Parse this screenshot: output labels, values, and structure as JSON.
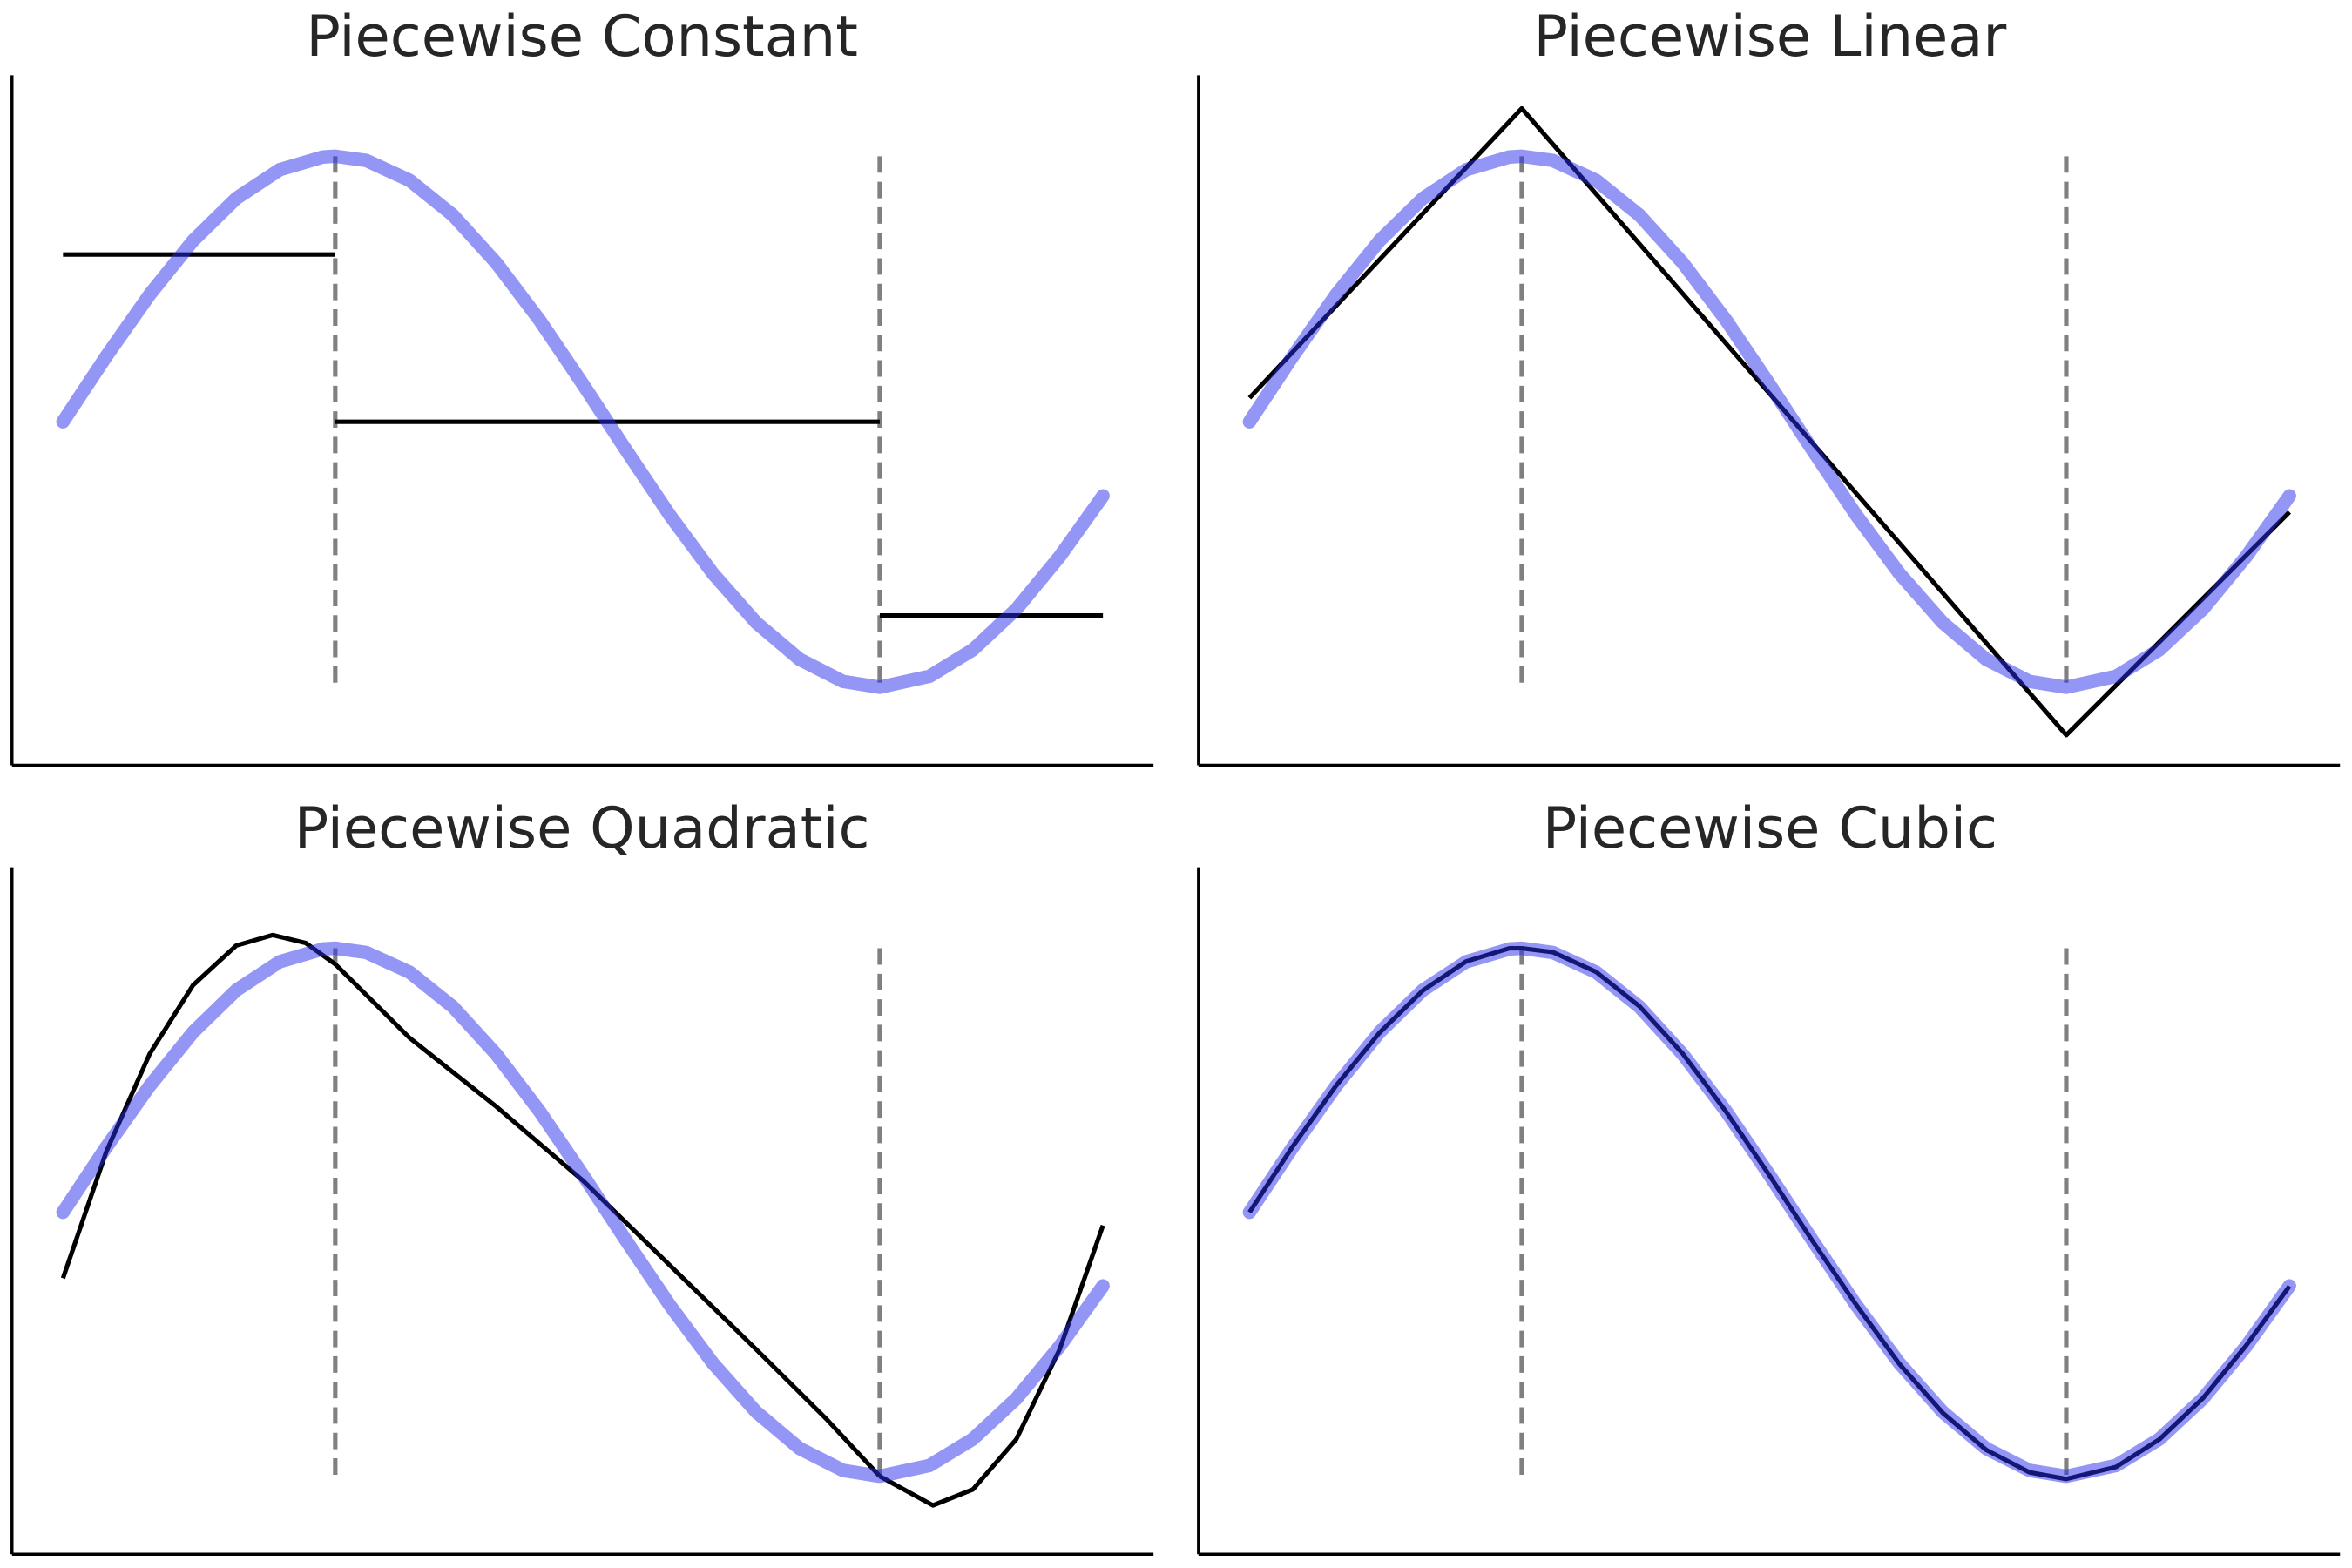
{
  "chart_data": [
    {
      "type": "line",
      "title": "Piecewise Constant",
      "knots": [
        1.5708,
        4.7124
      ],
      "xlim": [
        -0.3,
        6.3
      ],
      "ylim": [
        -1.3,
        1.35
      ],
      "true_curve": {
        "name": "sin(x)",
        "color": "#2a2eec",
        "x": [
          0,
          0.25,
          0.5,
          0.75,
          1,
          1.25,
          1.5,
          1.5708,
          1.75,
          2,
          2.25,
          2.5,
          2.75,
          3,
          3.25,
          3.5,
          3.75,
          4,
          4.25,
          4.5,
          4.7124,
          5,
          5.25,
          5.5,
          5.75,
          6
        ],
        "y": [
          0,
          0.247,
          0.479,
          0.682,
          0.841,
          0.949,
          0.997,
          1,
          0.984,
          0.909,
          0.778,
          0.598,
          0.382,
          0.141,
          -0.108,
          -0.351,
          -0.572,
          -0.757,
          -0.895,
          -0.978,
          -1,
          -0.959,
          -0.859,
          -0.706,
          -0.508,
          -0.279
        ]
      },
      "fit_segments": [
        {
          "x": [
            0,
            1.5708
          ],
          "y": [
            0.63,
            0.63
          ]
        },
        {
          "x": [
            1.5708,
            4.7124
          ],
          "y": [
            0,
            0
          ]
        },
        {
          "x": [
            4.7124,
            6
          ],
          "y": [
            -0.73,
            -0.73
          ]
        }
      ]
    },
    {
      "type": "line",
      "title": "Piecewise Linear",
      "knots": [
        1.5708,
        4.7124
      ],
      "xlim": [
        -0.3,
        6.3
      ],
      "ylim": [
        -1.3,
        1.35
      ],
      "fit_segments": [
        {
          "x": [
            0,
            1.5708,
            4.7124,
            6
          ],
          "y": [
            0.09,
            1.18,
            -1.18,
            -0.34
          ]
        }
      ]
    },
    {
      "type": "line",
      "title": "Piecewise Quadratic",
      "knots": [
        1.5708,
        4.7124
      ],
      "xlim": [
        -0.3,
        6.3
      ],
      "ylim": [
        -1.3,
        1.35
      ],
      "fit_segments": [
        {
          "x": [
            0,
            0.25,
            0.5,
            0.75,
            1,
            1.21,
            1.4,
            1.5708
          ],
          "y": [
            -0.25,
            0.23,
            0.6,
            0.86,
            1.01,
            1.05,
            1.02,
            0.94
          ]
        },
        {
          "x": [
            1.5708,
            2,
            2.5,
            3,
            3.5,
            4,
            4.4,
            4.7124
          ],
          "y": [
            0.94,
            0.66,
            0.4,
            0.12,
            -0.2,
            -0.52,
            -0.78,
            -1.0
          ]
        },
        {
          "x": [
            4.7124,
            5.02,
            5.25,
            5.5,
            5.75,
            6
          ],
          "y": [
            -1.0,
            -1.11,
            -1.05,
            -0.86,
            -0.52,
            -0.05
          ]
        }
      ]
    },
    {
      "type": "line",
      "title": "Piecewise Cubic",
      "knots": [
        1.5708,
        4.7124
      ],
      "xlim": [
        -0.3,
        6.3
      ],
      "ylim": [
        -1.3,
        1.35
      ],
      "fit_segments": [
        {
          "x": [
            0,
            0.25,
            0.5,
            0.75,
            1,
            1.25,
            1.5,
            1.5708,
            1.75,
            2,
            2.25,
            2.5,
            2.75,
            3,
            3.25,
            3.5,
            3.75,
            4,
            4.25,
            4.5,
            4.7124,
            5,
            5.25,
            5.5,
            5.75,
            6
          ],
          "y": [
            0,
            0.25,
            0.48,
            0.68,
            0.84,
            0.95,
            1.0,
            1.0,
            0.985,
            0.91,
            0.78,
            0.6,
            0.38,
            0.14,
            -0.11,
            -0.35,
            -0.575,
            -0.76,
            -0.9,
            -0.985,
            -1.01,
            -0.965,
            -0.86,
            -0.705,
            -0.505,
            -0.28
          ]
        }
      ]
    }
  ]
}
